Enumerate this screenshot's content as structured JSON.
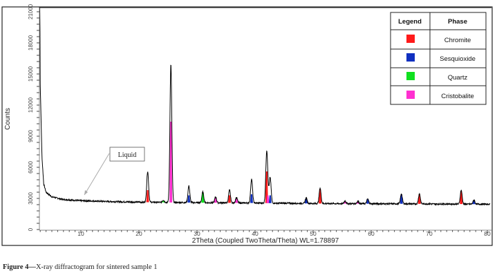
{
  "chart_data": {
    "type": "line",
    "xlabel": "2Theta (Coupled TwoTheta/Theta) WL=1.78897",
    "ylabel": "Counts",
    "xlim": [
      2.8,
      80.5
    ],
    "ylim": [
      0,
      21000
    ],
    "x_ticks": [
      10,
      20,
      30,
      40,
      50,
      60,
      70,
      80
    ],
    "y_ticks": [
      0,
      3000,
      6000,
      9000,
      12000,
      15000,
      18000,
      21000
    ],
    "grid": false,
    "background": [
      [
        2.8,
        40000
      ],
      [
        3.0,
        14000
      ],
      [
        3.3,
        7000
      ],
      [
        3.6,
        4400
      ],
      [
        4.0,
        3600
      ],
      [
        5.0,
        3150
      ],
      [
        7.0,
        2900
      ],
      [
        10.0,
        2780
      ],
      [
        15.0,
        2700
      ],
      [
        20.0,
        2640
      ],
      [
        30.0,
        2590
      ],
      [
        40.0,
        2560
      ],
      [
        50.0,
        2510
      ],
      [
        60.0,
        2490
      ],
      [
        70.0,
        2470
      ],
      [
        80.5,
        2440
      ]
    ],
    "peaks": [
      {
        "two_theta": 21.5,
        "counts": 5600,
        "phase": "Chromite",
        "marker": 3800
      },
      {
        "two_theta": 24.2,
        "counts": 2850,
        "phase": "Quartz",
        "marker": 2800
      },
      {
        "two_theta": 25.5,
        "counts": 15900,
        "phase": "Cristobalite",
        "marker": 10400
      },
      {
        "two_theta": 28.6,
        "counts": 4200,
        "phase": "Sesquioxide",
        "marker": 3300
      },
      {
        "two_theta": 31.0,
        "counts": 3620,
        "phase": "Quartz",
        "marker": 3600
      },
      {
        "two_theta": 33.2,
        "counts": 3130,
        "phase": "Cristobalite",
        "marker": 3100
      },
      {
        "two_theta": 35.6,
        "counts": 3800,
        "phase": "Chromite",
        "marker": 3300
      },
      {
        "two_theta": 36.8,
        "counts": 3100,
        "phase": "Cristobalite",
        "marker": 3100
      },
      {
        "two_theta": 39.4,
        "counts": 4870,
        "phase": "Sesquioxide",
        "marker": 3400
      },
      {
        "two_theta": 42.0,
        "counts": 7270,
        "phase": "Chromite",
        "marker": 5600
      },
      {
        "two_theta": 42.2,
        "counts": 3300,
        "phase": "Cristobalite",
        "marker": 3300
      },
      {
        "two_theta": 42.6,
        "counts": 5000,
        "phase": "Sesquioxide",
        "marker": 3300
      },
      {
        "two_theta": 48.8,
        "counts": 3050,
        "phase": "Sesquioxide",
        "marker": 3000
      },
      {
        "two_theta": 51.2,
        "counts": 4000,
        "phase": "Chromite",
        "marker": 3900
      },
      {
        "two_theta": 55.5,
        "counts": 2750,
        "phase": "Cristobalite",
        "marker": 2750
      },
      {
        "two_theta": 57.7,
        "counts": 2720,
        "phase": "Cristobalite",
        "marker": 2720
      },
      {
        "two_theta": 59.4,
        "counts": 2950,
        "phase": "Sesquioxide",
        "marker": 2900
      },
      {
        "two_theta": 65.2,
        "counts": 3450,
        "phase": "Sesquioxide",
        "marker": 3400
      },
      {
        "two_theta": 68.3,
        "counts": 3450,
        "phase": "Chromite",
        "marker": 3400
      },
      {
        "two_theta": 75.5,
        "counts": 3800,
        "phase": "Chromite",
        "marker": 3700
      },
      {
        "two_theta": 77.7,
        "counts": 2850,
        "phase": "Sesquioxide",
        "marker": 2800
      }
    ],
    "legend": {
      "placement": "top-right",
      "header_legend": "Legend",
      "header_phase": "Phase",
      "entries": [
        {
          "name": "Chromite",
          "color": "#ff1a1a"
        },
        {
          "name": "Sesquioxide",
          "color": "#1030c0"
        },
        {
          "name": "Quartz",
          "color": "#10e020"
        },
        {
          "name": "Cristobalite",
          "color": "#ff30d0"
        }
      ]
    },
    "annotation": {
      "text": "Liquid",
      "points_to_two_theta": 10.5
    }
  },
  "caption": {
    "label": "Figure 4—",
    "text": "X-ray diffractogram for sintered sample 1"
  }
}
